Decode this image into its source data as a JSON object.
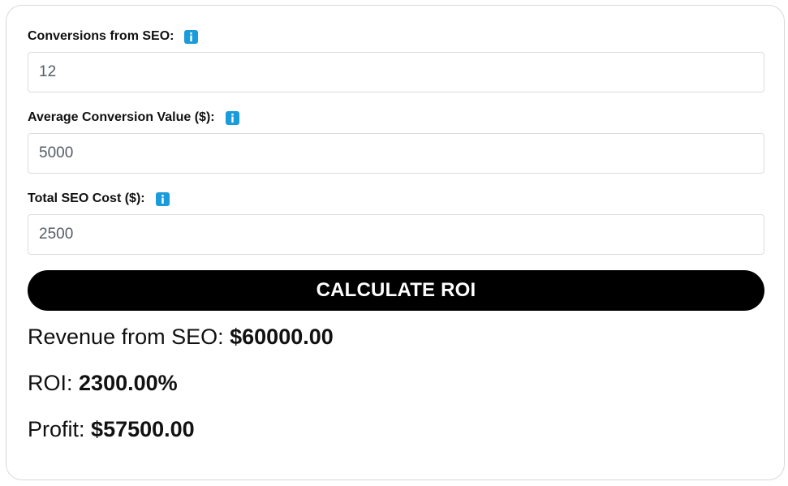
{
  "form": {
    "conversions": {
      "label": "Conversions from SEO:",
      "icon": "info-icon",
      "value": "12"
    },
    "avg_value": {
      "label": "Average Conversion Value ($):",
      "icon": "info-icon",
      "value": "5000"
    },
    "seo_cost": {
      "label": "Total SEO Cost ($):",
      "icon": "info-icon",
      "value": "2500"
    },
    "calculate_label": "CALCULATE ROI"
  },
  "results": {
    "revenue": {
      "label": "Revenue from SEO:",
      "value": "$60000.00"
    },
    "roi": {
      "label": "ROI:",
      "value": "2300.00%"
    },
    "profit": {
      "label": "Profit:",
      "value": "$57500.00"
    }
  },
  "colors": {
    "info_icon": "#1a9cdb",
    "button_bg": "#000000",
    "button_text": "#ffffff",
    "card_border": "#d9d9d9"
  }
}
